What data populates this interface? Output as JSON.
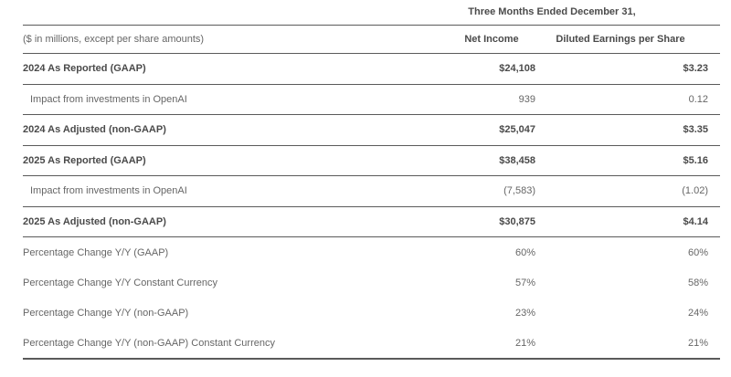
{
  "table": {
    "period_header": "Three Months Ended December 31,",
    "caption": "($ in millions, except per share amounts)",
    "columns": [
      "Net Income",
      "Diluted Earnings per Share"
    ],
    "rows": [
      {
        "label": "2024 As Reported (GAAP)",
        "net_income": "$24,108",
        "diluted_eps": "$3.23",
        "bold": true,
        "indent": false
      },
      {
        "label": "Impact from investments in OpenAI",
        "net_income": "939",
        "diluted_eps": "0.12",
        "bold": false,
        "indent": true
      },
      {
        "label": "2024 As Adjusted (non-GAAP)",
        "net_income": "$25,047",
        "diluted_eps": "$3.35",
        "bold": true,
        "indent": false
      },
      {
        "label": "2025 As Reported (GAAP)",
        "net_income": "$38,458",
        "diluted_eps": "$5.16",
        "bold": true,
        "indent": false
      },
      {
        "label": "Impact from investments in OpenAI",
        "net_income": "(7,583)",
        "diluted_eps": "(1.02)",
        "bold": false,
        "indent": true
      },
      {
        "label": "2025 As Adjusted (non-GAAP)",
        "net_income": "$30,875",
        "diluted_eps": "$4.14",
        "bold": true,
        "indent": false
      }
    ],
    "percentage_rows": [
      {
        "label": "Percentage Change Y/Y (GAAP)",
        "net_income": "60%",
        "diluted_eps": "60%"
      },
      {
        "label": "Percentage Change Y/Y Constant Currency",
        "net_income": "57%",
        "diluted_eps": "58%"
      },
      {
        "label": "Percentage Change Y/Y (non-GAAP)",
        "net_income": "23%",
        "diluted_eps": "24%"
      },
      {
        "label": "Percentage Change Y/Y (non-GAAP) Constant Currency",
        "net_income": "21%",
        "diluted_eps": "21%"
      }
    ]
  },
  "colors": {
    "rule": "#5a5a5a",
    "text_bold": "#4a4a4a",
    "text_regular": "#666666",
    "background": "#ffffff"
  },
  "chart_data": {
    "type": "table",
    "title": "Three Months Ended December 31,",
    "caption": "($ in millions, except per share amounts)",
    "columns": [
      "",
      "Net Income",
      "Diluted Earnings per Share"
    ],
    "rows": [
      [
        "2024 As Reported (GAAP)",
        "$24,108",
        "$3.23"
      ],
      [
        "Impact from investments in OpenAI",
        "939",
        "0.12"
      ],
      [
        "2024 As Adjusted (non-GAAP)",
        "$25,047",
        "$3.35"
      ],
      [
        "2025 As Reported (GAAP)",
        "$38,458",
        "$5.16"
      ],
      [
        "Impact from investments in OpenAI",
        "(7,583)",
        "(1.02)"
      ],
      [
        "2025 As Adjusted (non-GAAP)",
        "$30,875",
        "$4.14"
      ],
      [
        "Percentage Change Y/Y (GAAP)",
        "60%",
        "60%"
      ],
      [
        "Percentage Change Y/Y Constant Currency",
        "57%",
        "58%"
      ],
      [
        "Percentage Change Y/Y (non-GAAP)",
        "23%",
        "24%"
      ],
      [
        "Percentage Change Y/Y (non-GAAP) Constant Currency",
        "21%",
        "21%"
      ]
    ]
  }
}
